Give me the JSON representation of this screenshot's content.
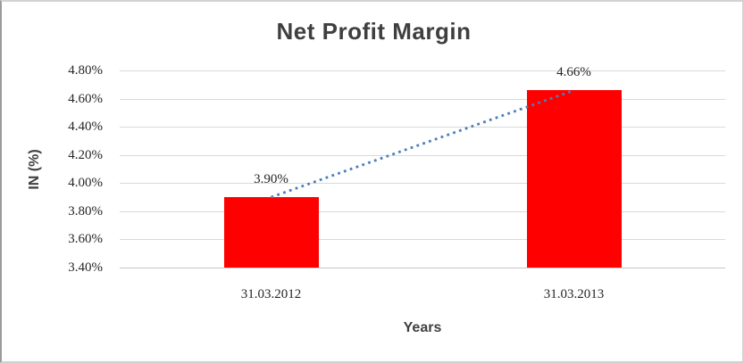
{
  "chart_data": {
    "type": "bar",
    "title": "Net Profit Margin",
    "xlabel": "Years",
    "ylabel": "IN (%)",
    "categories": [
      "31.03.2012",
      "31.03.2013"
    ],
    "series": [
      {
        "name": "Net Profit Margin",
        "type": "bar",
        "values": [
          3.9,
          4.66
        ],
        "data_labels": [
          "3.90%",
          "4.66%"
        ],
        "color": "#ff0000"
      },
      {
        "name": "trendline",
        "type": "dotted-line",
        "values": [
          3.9,
          4.66
        ],
        "color": "#4a7ebb"
      }
    ],
    "y_axis": {
      "min": 3.4,
      "max": 4.8,
      "step": 0.2,
      "tick_labels": [
        "3.40%",
        "3.60%",
        "3.80%",
        "4.00%",
        "4.20%",
        "4.40%",
        "4.60%",
        "4.80%"
      ]
    },
    "grid": true,
    "legend_position": "none",
    "colors": {
      "bar": "#ff0000",
      "trendline": "#4a7ebb",
      "gridline": "#d9d9d9",
      "title_text": "#3f3f3f",
      "tick_text": "#262626"
    }
  }
}
